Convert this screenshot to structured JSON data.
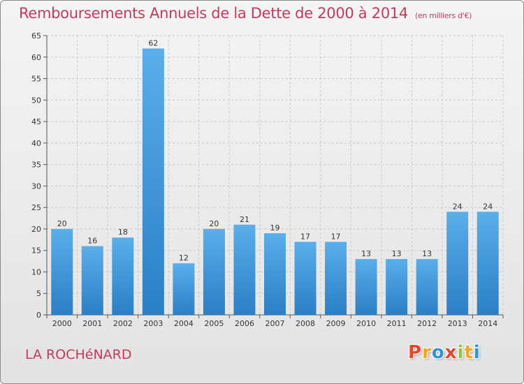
{
  "page": {
    "title": "Remboursements Annuels de la Dette de 2000 à 2014",
    "unit_note": "(en milliers d'€)",
    "commune": "LA ROCHéNARD",
    "logo": [
      "P",
      "r",
      "o",
      "x",
      "i",
      "t",
      "i"
    ],
    "logo_colors": [
      "#e8452c",
      "#f3a81a",
      "#2f93d8",
      "#e8452c",
      "#8dc63f",
      "#f3a81a",
      "#2f93d8"
    ]
  },
  "chart_data": {
    "type": "bar",
    "title": "Remboursements Annuels de la Dette de 2000 à 2014",
    "xlabel": "",
    "ylabel": "",
    "categories": [
      "2000",
      "2001",
      "2002",
      "2003",
      "2004",
      "2005",
      "2006",
      "2007",
      "2008",
      "2009",
      "2010",
      "2011",
      "2012",
      "2013",
      "2014"
    ],
    "values": [
      20,
      16,
      18,
      62,
      12,
      20,
      21,
      19,
      17,
      17,
      13,
      13,
      13,
      24,
      24
    ],
    "ylim": [
      0,
      65
    ],
    "yticks": [
      0,
      5,
      10,
      15,
      20,
      25,
      30,
      35,
      40,
      45,
      50,
      55,
      60,
      65
    ],
    "grid": true,
    "bar_color_top": "#5aaeea",
    "bar_color_bottom": "#2a7fc6"
  }
}
